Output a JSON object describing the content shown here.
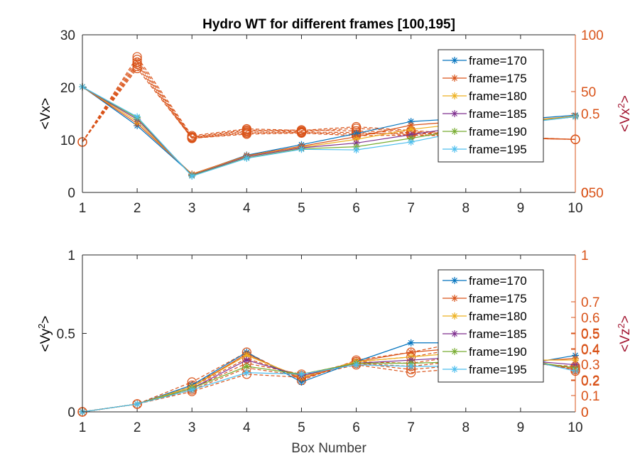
{
  "chart_data": [
    {
      "type": "line",
      "title": "Hydro WT for different frames [100,195]",
      "xlabel": "",
      "ylabel": "<Vx>",
      "ylabel_right": "<Vx²>",
      "xlim": [
        1,
        10
      ],
      "ylim": [
        0,
        30
      ],
      "x_ticks": [
        "1",
        "2",
        "3",
        "4",
        "5",
        "6",
        "7",
        "8",
        "9",
        "10"
      ],
      "y_ticks": [
        "0",
        "10",
        "20",
        "30"
      ],
      "right_ticks": [
        "0",
        "0",
        "0.5",
        "50",
        "100"
      ],
      "right_tick_overlap": "050",
      "grid": false,
      "legend_position": "top-right",
      "x": [
        1,
        2,
        3,
        4,
        5,
        6,
        7,
        8,
        9,
        10
      ],
      "series": [
        {
          "name": "frame=170",
          "color": "#0072BD",
          "values": [
            20.1,
            12.7,
            3.4,
            7.1,
            9.1,
            11.2,
            13.5,
            14.1,
            13.9,
            14.7
          ]
        },
        {
          "name": "frame=175",
          "color": "#D95319",
          "values": [
            20.1,
            13.1,
            3.5,
            7.0,
            8.8,
            10.6,
            12.8,
            13.6,
            13.6,
            14.5
          ]
        },
        {
          "name": "frame=180",
          "color": "#EDB120",
          "values": [
            20.1,
            13.5,
            3.4,
            6.9,
            8.6,
            10.1,
            12.0,
            13.2,
            13.5,
            14.5
          ]
        },
        {
          "name": "frame=185",
          "color": "#7E2F8E",
          "values": [
            20.1,
            13.9,
            3.3,
            6.8,
            8.5,
            9.4,
            11.0,
            12.6,
            13.3,
            14.4
          ]
        },
        {
          "name": "frame=190",
          "color": "#77AC30",
          "values": [
            20.1,
            14.2,
            3.2,
            6.6,
            8.3,
            8.7,
            10.3,
            12.1,
            13.3,
            14.4
          ]
        },
        {
          "name": "frame=195",
          "color": "#4DBEEE",
          "values": [
            20.1,
            14.4,
            3.1,
            6.5,
            8.2,
            8.1,
            9.6,
            11.7,
            13.2,
            14.4
          ]
        }
      ],
      "dashed_series": [
        {
          "values": [
            9.6,
            25.8,
            10.8,
            12.1,
            11.8,
            12.5,
            11.8,
            11.1,
            10.5,
            10.1
          ]
        },
        {
          "values": [
            9.6,
            25.3,
            10.6,
            11.9,
            11.6,
            12.2,
            11.6,
            11.0,
            10.4,
            10.1
          ]
        },
        {
          "values": [
            9.6,
            24.8,
            10.5,
            11.7,
            11.9,
            11.7,
            11.4,
            10.9,
            10.4,
            10.1
          ]
        },
        {
          "values": [
            9.6,
            24.4,
            10.4,
            11.5,
            11.5,
            11.4,
            11.0,
            10.8,
            10.3,
            10.1
          ]
        },
        {
          "values": [
            9.6,
            24.0,
            10.3,
            11.3,
            11.4,
            11.1,
            11.3,
            10.8,
            10.3,
            10.1
          ]
        },
        {
          "values": [
            9.6,
            23.6,
            10.3,
            11.1,
            11.3,
            10.8,
            10.9,
            10.7,
            10.3,
            10.1
          ]
        }
      ]
    },
    {
      "type": "line",
      "title": "",
      "xlabel": "Box Number",
      "ylabel": "<Vy²>",
      "ylabel_right": "<Vz²>",
      "xlim": [
        1,
        10
      ],
      "ylim": [
        0,
        1
      ],
      "x_ticks": [
        "1",
        "2",
        "3",
        "4",
        "5",
        "6",
        "7",
        "8",
        "9",
        "10"
      ],
      "y_ticks": [
        "0",
        "0.5",
        "1"
      ],
      "right_ticks": [
        "0",
        "0",
        "0.1",
        "0.2",
        "0.2",
        "0.3",
        "0.4",
        "0.4",
        "0.5",
        "0.5",
        "0.6",
        "0.7",
        "1"
      ],
      "grid": false,
      "legend_position": "top-right",
      "x": [
        1,
        2,
        3,
        4,
        5,
        6,
        7,
        8,
        9,
        10
      ],
      "series": [
        {
          "name": "frame=170",
          "color": "#0072BD",
          "values": [
            0.0,
            0.05,
            0.17,
            0.38,
            0.19,
            0.32,
            0.44,
            0.44,
            0.3,
            0.36
          ]
        },
        {
          "name": "frame=175",
          "color": "#D95319",
          "values": [
            0.0,
            0.05,
            0.16,
            0.37,
            0.21,
            0.32,
            0.38,
            0.41,
            0.32,
            0.34
          ]
        },
        {
          "name": "frame=180",
          "color": "#EDB120",
          "values": [
            0.0,
            0.05,
            0.16,
            0.36,
            0.22,
            0.32,
            0.35,
            0.38,
            0.33,
            0.33
          ]
        },
        {
          "name": "frame=185",
          "color": "#7E2F8E",
          "values": [
            0.0,
            0.05,
            0.15,
            0.33,
            0.23,
            0.31,
            0.33,
            0.35,
            0.33,
            0.3
          ]
        },
        {
          "name": "frame=190",
          "color": "#77AC30",
          "values": [
            0.0,
            0.05,
            0.15,
            0.29,
            0.24,
            0.31,
            0.31,
            0.32,
            0.33,
            0.28
          ]
        },
        {
          "name": "frame=195",
          "color": "#4DBEEE",
          "values": [
            0.0,
            0.05,
            0.14,
            0.25,
            0.24,
            0.3,
            0.29,
            0.29,
            0.34,
            0.26
          ]
        }
      ],
      "dashed_series": [
        {
          "values": [
            0.0,
            0.05,
            0.19,
            0.38,
            0.2,
            0.33,
            0.38,
            0.45,
            0.35,
            0.26
          ]
        },
        {
          "values": [
            0.0,
            0.05,
            0.17,
            0.36,
            0.22,
            0.32,
            0.35,
            0.41,
            0.34,
            0.27
          ]
        },
        {
          "values": [
            0.0,
            0.05,
            0.16,
            0.34,
            0.23,
            0.32,
            0.31,
            0.36,
            0.33,
            0.27
          ]
        },
        {
          "values": [
            0.0,
            0.05,
            0.15,
            0.31,
            0.24,
            0.31,
            0.29,
            0.33,
            0.32,
            0.28
          ]
        },
        {
          "values": [
            0.0,
            0.05,
            0.14,
            0.28,
            0.23,
            0.31,
            0.27,
            0.3,
            0.32,
            0.28
          ]
        },
        {
          "values": [
            0.0,
            0.05,
            0.13,
            0.24,
            0.22,
            0.3,
            0.25,
            0.28,
            0.31,
            0.29
          ]
        }
      ]
    }
  ],
  "colors": {
    "left_axis": "#000000",
    "right_axis": "#D95319",
    "right_label": "#A2142F",
    "dashed": "#D95319"
  }
}
